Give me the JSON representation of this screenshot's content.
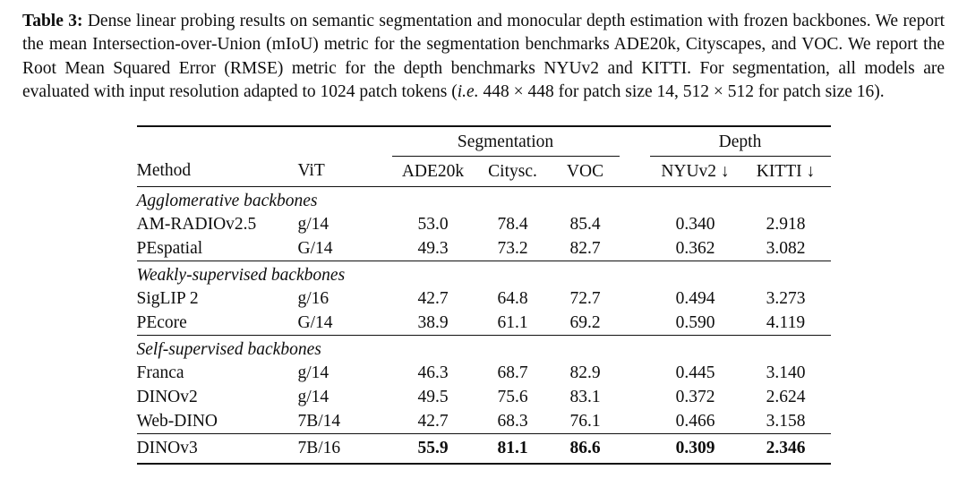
{
  "colors": {
    "background": "#ffffff",
    "text": "#0e0e0e",
    "rule": "#111111"
  },
  "caption": {
    "label": "Table 3:",
    "body_1": "Dense linear probing results on semantic segmentation and monocular depth estimation with frozen backbones. We report the mean Intersection-over-Union (mIoU) metric for the segmentation benchmarks ADE20k, Cityscapes, and VOC. We report the Root Mean Squared Error (RMSE) metric for the depth benchmarks NYUv2 and KITTI. For segmentation, all models are evaluated with input resolution adapted to 1024 patch tokens (",
    "ie": "i.e.",
    "body_2": " 448 × 448 for patch size 14, 512 × 512 for patch size 16)."
  },
  "table": {
    "span_headers": [
      "Segmentation",
      "Depth"
    ],
    "columns": [
      "Method",
      "ViT",
      "ADE20k",
      "Citysc.",
      "VOC",
      "NYUv2 ↓",
      "KITTI ↓"
    ],
    "groups": [
      {
        "label": "Agglomerative backbones",
        "rows": [
          {
            "method": "AM-RADIOv2.5",
            "vit": "g/14",
            "values": [
              "53.0",
              "78.4",
              "85.4",
              "0.340",
              "2.918"
            ]
          },
          {
            "method": "PEspatial",
            "vit": "G/14",
            "values": [
              "49.3",
              "73.2",
              "82.7",
              "0.362",
              "3.082"
            ]
          }
        ]
      },
      {
        "label": "Weakly-supervised backbones",
        "rows": [
          {
            "method": "SigLIP 2",
            "vit": "g/16",
            "values": [
              "42.7",
              "64.8",
              "72.7",
              "0.494",
              "3.273"
            ]
          },
          {
            "method": "PEcore",
            "vit": "G/14",
            "values": [
              "38.9",
              "61.1",
              "69.2",
              "0.590",
              "4.119"
            ]
          }
        ]
      },
      {
        "label": "Self-supervised backbones",
        "rows": [
          {
            "method": "Franca",
            "vit": "g/14",
            "values": [
              "46.3",
              "68.7",
              "82.9",
              "0.445",
              "3.140"
            ]
          },
          {
            "method": "DINOv2",
            "vit": "g/14",
            "values": [
              "49.5",
              "75.6",
              "83.1",
              "0.372",
              "2.624"
            ]
          },
          {
            "method": "Web-DINO",
            "vit": "7B/14",
            "values": [
              "42.7",
              "68.3",
              "76.1",
              "0.466",
              "3.158"
            ]
          }
        ]
      }
    ],
    "final_row": {
      "method": "DINOv3",
      "vit": "7B/16",
      "values": [
        "55.9",
        "81.1",
        "86.6",
        "0.309",
        "2.346"
      ]
    }
  }
}
